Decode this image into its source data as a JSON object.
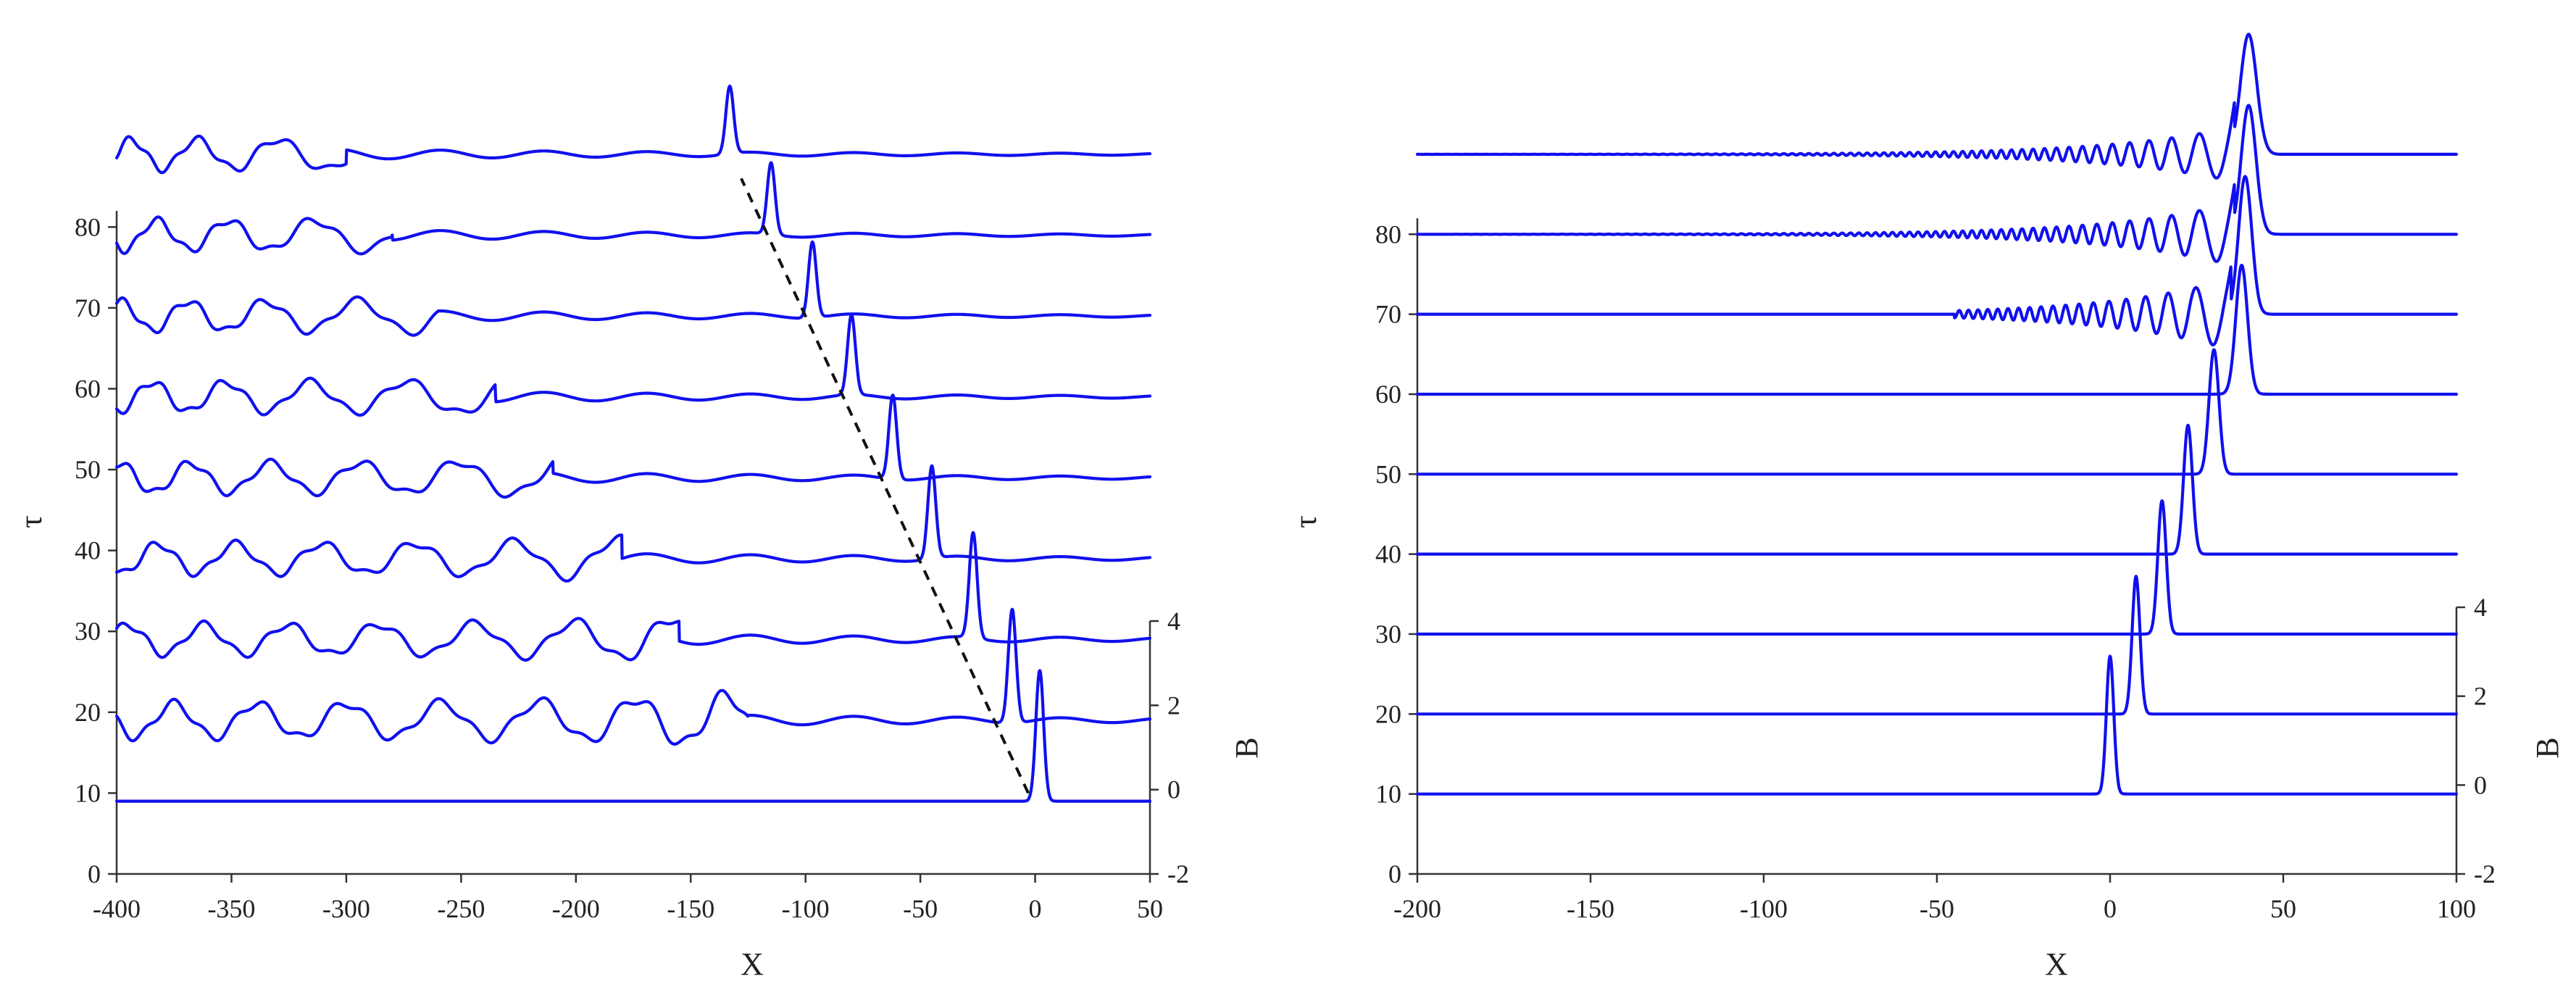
{
  "colors": {
    "trace": "#1010ee",
    "axis": "#333333",
    "dashed_guide": "#111111"
  },
  "chart_data": [
    {
      "type": "line",
      "panel": "left",
      "title": "",
      "xlabel": "X",
      "ylabel": "τ",
      "right_axis_label": "B",
      "xlim": [
        -400,
        50
      ],
      "ylim": [
        0,
        90
      ],
      "right_axis_range": [
        -2,
        4
      ],
      "x_ticks": [
        "-400",
        "-350",
        "-300",
        "-250",
        "-200",
        "-150",
        "-100",
        "-50",
        "0",
        "50"
      ],
      "y_ticks": [
        "0",
        "10",
        "20",
        "30",
        "40",
        "50",
        "60",
        "70",
        "80"
      ],
      "right_ticks": [
        "-2",
        "0",
        "2",
        "4"
      ],
      "grid": false,
      "legend": "none",
      "series": [
        {
          "tau": 9,
          "peak_x": 2,
          "peak_height": 3.1,
          "envelope_start": 20,
          "envelope_peak": 0,
          "wave_amplitude": 0.0,
          "wave_period": 30
        },
        {
          "tau": 19,
          "peak_x": -10,
          "peak_height": 2.7,
          "envelope_start": -125,
          "envelope_peak": -20,
          "wave_amplitude": 0.4,
          "wave_period": 32
        },
        {
          "tau": 29,
          "peak_x": -27,
          "peak_height": 2.5,
          "envelope_start": -155,
          "envelope_peak": -35,
          "wave_amplitude": 0.35,
          "wave_period": 31
        },
        {
          "tau": 39,
          "peak_x": -45,
          "peak_height": 2.2,
          "envelope_start": -180,
          "envelope_peak": -52,
          "wave_amplitude": 0.35,
          "wave_period": 30
        },
        {
          "tau": 49,
          "peak_x": -62,
          "peak_height": 2.0,
          "envelope_start": -210,
          "envelope_peak": -70,
          "wave_amplitude": 0.35,
          "wave_period": 29
        },
        {
          "tau": 59,
          "peak_x": -80,
          "peak_height": 1.9,
          "envelope_start": -235,
          "envelope_peak": -88,
          "wave_amplitude": 0.35,
          "wave_period": 28
        },
        {
          "tau": 69,
          "peak_x": -97,
          "peak_height": 1.8,
          "envelope_start": -260,
          "envelope_peak": -105,
          "wave_amplitude": 0.35,
          "wave_period": 27
        },
        {
          "tau": 79,
          "peak_x": -115,
          "peak_height": 1.7,
          "envelope_start": -280,
          "envelope_peak": -122,
          "wave_amplitude": 0.35,
          "wave_period": 26
        },
        {
          "tau": 89,
          "peak_x": -133,
          "peak_height": 1.6,
          "envelope_start": -300,
          "envelope_peak": -140,
          "wave_amplitude": 0.35,
          "wave_period": 25
        }
      ],
      "dashed_guide": {
        "from": [
          -3,
          10
        ],
        "to": [
          -128,
          86
        ]
      }
    },
    {
      "type": "line",
      "panel": "right",
      "title": "",
      "xlabel": "X",
      "ylabel": "τ",
      "right_axis_label": "B",
      "xlim": [
        -200,
        100
      ],
      "ylim": [
        0,
        90
      ],
      "right_axis_range": [
        -2,
        4
      ],
      "x_ticks": [
        "-200",
        "-150",
        "-100",
        "-50",
        "0",
        "50",
        "100"
      ],
      "y_ticks": [
        "0",
        "10",
        "20",
        "30",
        "40",
        "50",
        "60",
        "70",
        "80"
      ],
      "right_ticks": [
        "-2",
        "0",
        "2",
        "4"
      ],
      "grid": false,
      "legend": "none",
      "series": [
        {
          "tau": 10,
          "peak_x": 0,
          "peak_height": 3.1,
          "peak_width": 1.5,
          "tail_start": 0,
          "tail_amplitude": 0.0
        },
        {
          "tau": 20,
          "peak_x": 7.5,
          "peak_height": 3.1,
          "peak_width": 1.6,
          "tail_start": 7.5,
          "tail_amplitude": 0.0
        },
        {
          "tau": 30,
          "peak_x": 15,
          "peak_height": 3.0,
          "peak_width": 1.7,
          "tail_start": 15,
          "tail_amplitude": 0.0
        },
        {
          "tau": 40,
          "peak_x": 22.5,
          "peak_height": 2.9,
          "peak_width": 1.8,
          "tail_start": 22.5,
          "tail_amplitude": 0.0
        },
        {
          "tau": 50,
          "peak_x": 30,
          "peak_height": 2.8,
          "peak_width": 2.0,
          "tail_start": 30,
          "tail_amplitude": 0.0
        },
        {
          "tau": 60,
          "peak_x": 38,
          "peak_height": 2.9,
          "peak_width": 2.4,
          "tail_start": 38,
          "tail_amplitude": 0.0
        },
        {
          "tau": 70,
          "peak_x": 39,
          "peak_height": 3.1,
          "peak_width": 2.7,
          "tail_start": -45,
          "tail_amplitude": 0.9
        },
        {
          "tau": 80,
          "peak_x": 40,
          "peak_height": 2.9,
          "peak_width": 3.0,
          "tail_start": -190,
          "tail_amplitude": 0.8
        },
        {
          "tau": 90,
          "peak_x": 40,
          "peak_height": 2.7,
          "peak_width": 3.3,
          "tail_start": -200,
          "tail_amplitude": 0.7
        }
      ]
    }
  ]
}
